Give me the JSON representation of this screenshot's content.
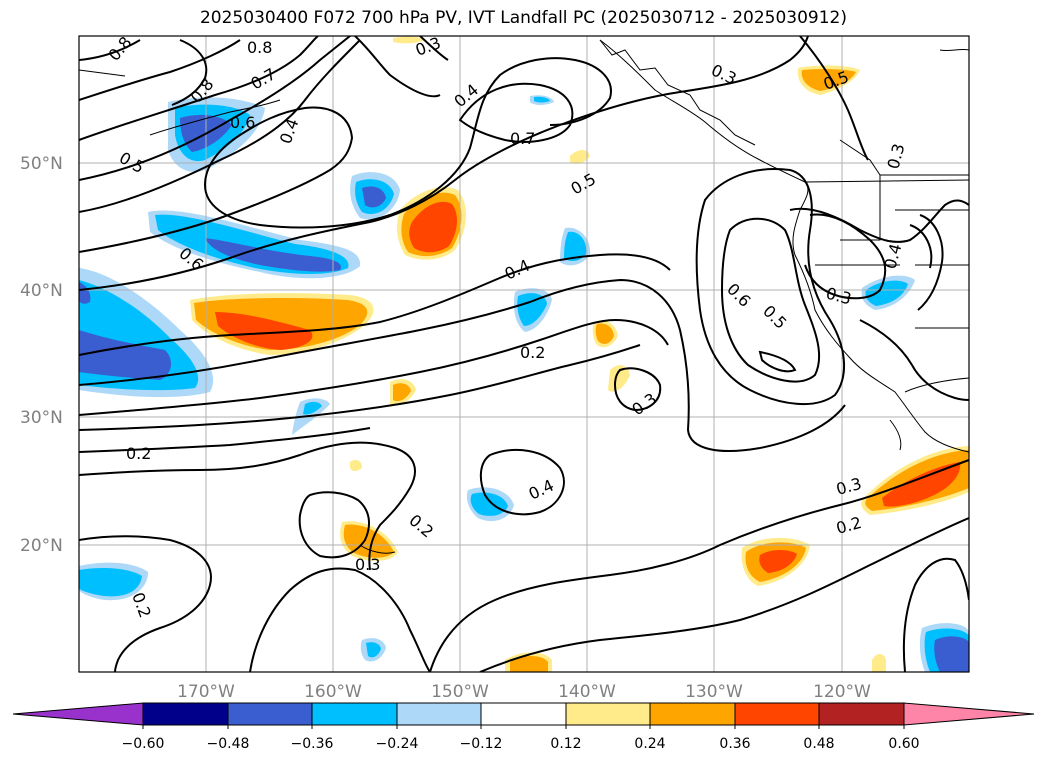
{
  "title": "2025030400 F072 700 hPa PV, IVT Landfall PC (2025030712 - 2025030912)",
  "colors": {
    "neg_060": "#9932cc",
    "neg_048": "#00008b",
    "neg_036": "#3a5ed0",
    "neg_024": "#00bfff",
    "neg_012": "#add8f7",
    "pos_012": "#ffeb8a",
    "pos_024": "#ffa500",
    "pos_036": "#ff4500",
    "pos_048": "#b22222",
    "pos_060": "#ff85a8",
    "grid": "#b0b0b0",
    "coast": "#000000",
    "contour": "#000000"
  },
  "lat_labels": [
    "50°N",
    "40°N",
    "30°N",
    "20°N"
  ],
  "lon_labels": [
    "170°W",
    "160°W",
    "150°W",
    "140°W",
    "130°W",
    "120°W"
  ],
  "colorbar_ticks": [
    "−0.60",
    "−0.48",
    "−0.36",
    "−0.24",
    "−0.12",
    "0.12",
    "0.24",
    "0.36",
    "0.48",
    "0.60"
  ],
  "contour_labels": [
    "0.8",
    "0.8",
    "0.8",
    "0.7",
    "0.6",
    "0.5",
    "0.4",
    "0.6",
    "0.7",
    "0.5",
    "0.4",
    "0.3",
    "0.3",
    "0.4",
    "0.5",
    "0.3",
    "0.6",
    "0.5",
    "0.3",
    "0.2",
    "0.3",
    "0.2",
    "0.4",
    "0.2",
    "0.3",
    "0.3",
    "0.2",
    "0.2",
    "0.4"
  ]
}
